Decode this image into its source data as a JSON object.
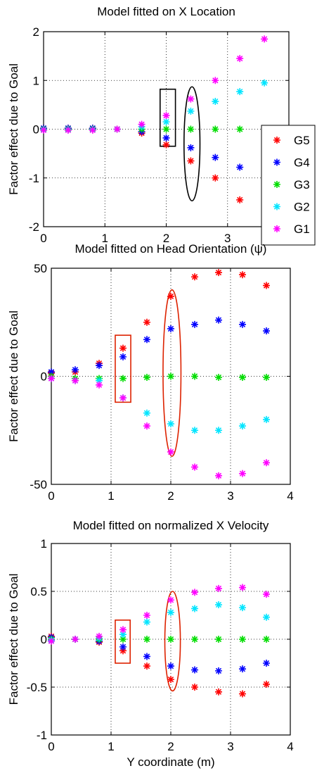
{
  "chart_data": [
    {
      "type": "scatter",
      "title": "Model fitted on X Location",
      "xlabel": "",
      "ylabel": "Factor effect due to Goal",
      "xlim": [
        0,
        4
      ],
      "ylim": [
        -2,
        2
      ],
      "xticks": [
        0,
        1,
        2,
        3,
        4
      ],
      "yticks": [
        -2,
        -1,
        0,
        1,
        2
      ],
      "xtick_labels": [
        "0",
        "1",
        "2",
        "3",
        ""
      ],
      "ytick_labels": [
        "-2",
        "-1",
        "0",
        "1",
        "2"
      ],
      "grid": true,
      "legend": {
        "placement": "right"
      },
      "x": [
        0,
        0.4,
        0.8,
        1.2,
        1.6,
        2.0,
        2.4,
        2.8,
        3.2,
        3.6
      ],
      "series": [
        {
          "name": "G5",
          "color": "#ff0000",
          "values": [
            0.02,
            0.02,
            0.02,
            0.0,
            -0.08,
            -0.32,
            -0.65,
            -1.0,
            -1.45,
            null
          ]
        },
        {
          "name": "G4",
          "color": "#0000ff",
          "values": [
            0.02,
            0.02,
            0.02,
            0.0,
            -0.05,
            -0.18,
            -0.38,
            -0.58,
            -0.78,
            null
          ]
        },
        {
          "name": "G3",
          "color": "#00dd00",
          "values": [
            0.0,
            0.0,
            0.0,
            0.0,
            0.0,
            0.0,
            0.0,
            0.0,
            0.0,
            null
          ]
        },
        {
          "name": "G2",
          "color": "#00e5ff",
          "values": [
            -0.01,
            -0.01,
            -0.01,
            0.0,
            0.05,
            0.15,
            0.37,
            0.57,
            0.77,
            0.95
          ]
        },
        {
          "name": "G1",
          "color": "#ff00ff",
          "values": [
            -0.02,
            -0.02,
            -0.02,
            0.0,
            0.1,
            0.28,
            0.62,
            1.0,
            1.45,
            1.85
          ]
        }
      ],
      "annotations": [
        {
          "shape": "rectangle",
          "color": "#000000",
          "x": [
            1.9,
            2.15
          ],
          "y": [
            -0.35,
            0.82
          ]
        },
        {
          "shape": "ellipse",
          "color": "#000000",
          "cx": 2.42,
          "cy": -0.3,
          "rx": 0.13,
          "ry": 1.17
        }
      ]
    },
    {
      "type": "scatter",
      "title": "Model fitted on Head Orientation (ψ)",
      "xlabel": "",
      "ylabel": "Factor effect due to Goal",
      "xlim": [
        0,
        4
      ],
      "ylim": [
        -50,
        50
      ],
      "xticks": [
        0,
        1,
        2,
        3,
        4
      ],
      "yticks": [
        -50,
        0,
        50
      ],
      "xtick_labels": [
        "0",
        "1",
        "2",
        "3",
        "4"
      ],
      "ytick_labels": [
        "-50",
        "0",
        "50"
      ],
      "grid": true,
      "x": [
        0,
        0.4,
        0.8,
        1.2,
        1.6,
        2.0,
        2.4,
        2.8,
        3.2,
        3.6
      ],
      "series": [
        {
          "name": "G5",
          "color": "#ff0000",
          "values": [
            1.5,
            2,
            6,
            13,
            25,
            37,
            46,
            48,
            47,
            42
          ]
        },
        {
          "name": "G4",
          "color": "#0000ff",
          "values": [
            2,
            3,
            5,
            9,
            17,
            22,
            24,
            26,
            24,
            21
          ]
        },
        {
          "name": "G3",
          "color": "#00dd00",
          "values": [
            0,
            -1,
            -1,
            -1,
            -0.5,
            0,
            0,
            -0.5,
            -0.5,
            -0.5
          ]
        },
        {
          "name": "G2",
          "color": "#00e5ff",
          "values": [
            -1,
            -2,
            -2,
            -10,
            -17,
            -22,
            -25,
            -25,
            -23,
            -20
          ]
        },
        {
          "name": "G1",
          "color": "#ff00ff",
          "values": [
            -1,
            -2,
            -4,
            -10,
            -23,
            -35,
            -42,
            -46,
            -45,
            -40
          ]
        }
      ],
      "annotations": [
        {
          "shape": "rectangle",
          "color": "#dd2200",
          "x": [
            1.07,
            1.33
          ],
          "y": [
            -12,
            19
          ]
        },
        {
          "shape": "ellipse",
          "color": "#dd2200",
          "cx": 2.02,
          "cy": 1.5,
          "rx": 0.15,
          "ry": 38.5
        }
      ]
    },
    {
      "type": "scatter",
      "title": "Model fitted on normalized X Velocity",
      "xlabel": "Y coordinate (m)",
      "ylabel": "Factor effect due to Goal",
      "xlim": [
        0,
        4
      ],
      "ylim": [
        -1,
        1
      ],
      "xticks": [
        0,
        1,
        2,
        3,
        4
      ],
      "yticks": [
        -1,
        -0.5,
        0,
        0.5,
        1
      ],
      "xtick_labels": [
        "0",
        "1",
        "2",
        "3",
        "4"
      ],
      "ytick_labels": [
        "-1",
        "-0.5",
        "0",
        "0.5",
        "1"
      ],
      "grid": true,
      "x": [
        0,
        0.4,
        0.8,
        1.2,
        1.6,
        2.0,
        2.4,
        2.8,
        3.2,
        3.6
      ],
      "series": [
        {
          "name": "G5",
          "color": "#ff0000",
          "values": [
            0.03,
            0.0,
            -0.03,
            -0.12,
            -0.28,
            -0.42,
            -0.5,
            -0.55,
            -0.57,
            -0.47
          ]
        },
        {
          "name": "G4",
          "color": "#0000ff",
          "values": [
            0.02,
            0.0,
            -0.02,
            -0.08,
            -0.18,
            -0.28,
            -0.32,
            -0.33,
            -0.31,
            -0.25
          ]
        },
        {
          "name": "G3",
          "color": "#00dd00",
          "values": [
            0.0,
            0.0,
            0.0,
            0.0,
            0.0,
            0.0,
            0.0,
            0.0,
            0.0,
            0.0
          ]
        },
        {
          "name": "G2",
          "color": "#00e5ff",
          "values": [
            -0.01,
            0.0,
            0.01,
            0.05,
            0.18,
            0.28,
            0.32,
            0.36,
            0.33,
            0.23
          ]
        },
        {
          "name": "G1",
          "color": "#ff00ff",
          "values": [
            -0.02,
            0.0,
            0.03,
            0.1,
            0.25,
            0.41,
            0.49,
            0.53,
            0.54,
            0.47
          ]
        }
      ],
      "annotations": [
        {
          "shape": "rectangle",
          "color": "#dd2200",
          "x": [
            1.07,
            1.32
          ],
          "y": [
            -0.25,
            0.2
          ]
        },
        {
          "shape": "ellipse",
          "color": "#dd2200",
          "cx": 2.03,
          "cy": -0.02,
          "rx": 0.13,
          "ry": 0.52
        }
      ]
    }
  ]
}
